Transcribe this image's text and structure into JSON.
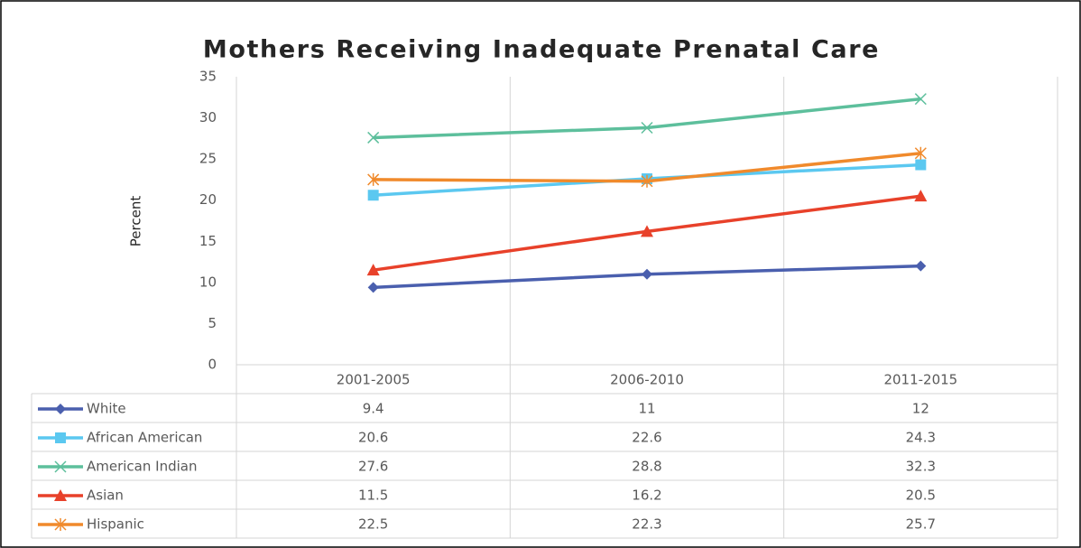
{
  "chart_data": {
    "type": "line",
    "title": "Mothers Receiving Inadequate Prenatal Care",
    "y_label": "Percent",
    "categories": [
      "2001-2005",
      "2006-2010",
      "2011-2015"
    ],
    "series": [
      {
        "name": "White",
        "color": "#4a5fae",
        "marker": "diamond",
        "values": [
          9.4,
          11,
          12
        ]
      },
      {
        "name": "African American",
        "color": "#5bc8f0",
        "marker": "square",
        "values": [
          20.6,
          22.6,
          24.3
        ]
      },
      {
        "name": "American Indian",
        "color": "#5dbf9c",
        "marker": "x",
        "values": [
          27.6,
          28.8,
          32.3
        ]
      },
      {
        "name": "Asian",
        "color": "#e8412a",
        "marker": "triangle",
        "values": [
          11.5,
          16.2,
          20.5
        ]
      },
      {
        "name": "Hispanic",
        "color": "#f08a2c",
        "marker": "asterisk",
        "values": [
          22.5,
          22.3,
          25.7
        ]
      }
    ],
    "ylim": [
      0,
      35
    ],
    "yticks": [
      0,
      5,
      10,
      15,
      20,
      25,
      30,
      35
    ],
    "data_table": true
  }
}
